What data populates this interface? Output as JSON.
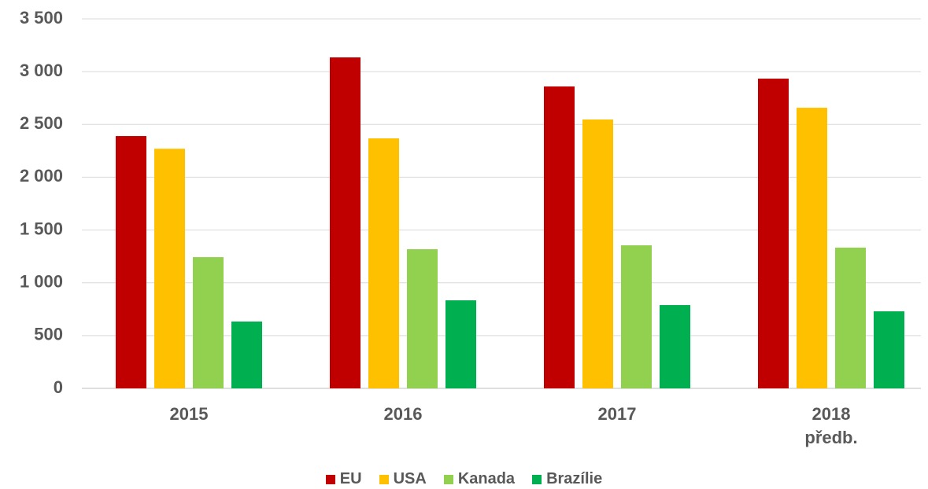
{
  "chart_data": {
    "type": "bar",
    "categories": [
      "2015",
      "2016",
      "2017",
      "2018\npředb."
    ],
    "series": [
      {
        "name": "EU",
        "color": "#c00000",
        "values": [
          2390,
          3135,
          2860,
          2934
        ]
      },
      {
        "name": "USA",
        "color": "#ffc000",
        "values": [
          2270,
          2368,
          2547,
          2658
        ]
      },
      {
        "name": "Kanada",
        "color": "#92d050",
        "values": [
          1243,
          1318,
          1355,
          1333
        ]
      },
      {
        "name": "Brazílie",
        "color": "#00b050",
        "values": [
          633,
          834,
          789,
          730
        ]
      }
    ],
    "ylim": [
      0,
      3500
    ],
    "yticks": [
      0,
      500,
      {
        "value": 1000,
        "label": "1 000"
      },
      {
        "value": 1500,
        "label": "1 500"
      },
      {
        "value": 2000,
        "label": "2 000"
      },
      {
        "value": 2500,
        "label": "2 500"
      },
      {
        "value": 3000,
        "label": "3 000"
      },
      {
        "value": 3500,
        "label": "3 500"
      }
    ],
    "grid": true,
    "legend": "bottom"
  }
}
